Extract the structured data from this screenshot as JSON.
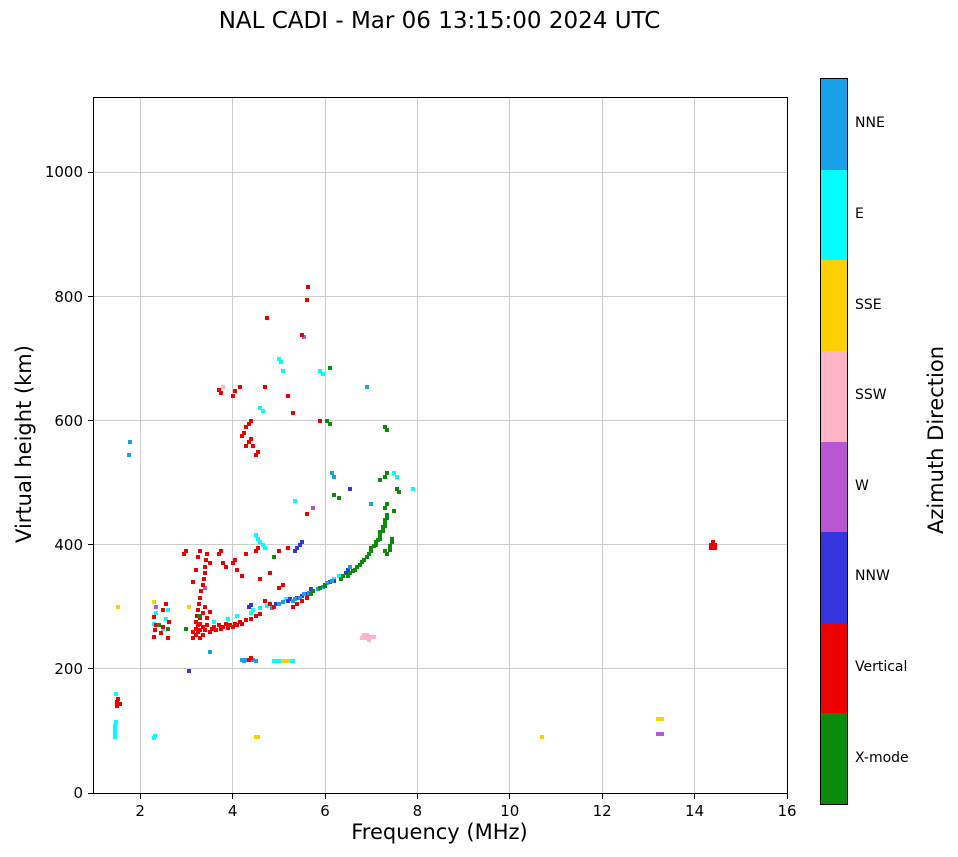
{
  "chart_data": {
    "type": "scatter",
    "title": "NAL CADI - Mar 06 13:15:00 2024 UTC",
    "xlabel": "Frequency (MHz)",
    "ylabel": "Virtual height (km)",
    "xlim": [
      1,
      16
    ],
    "ylim": [
      0,
      1120
    ],
    "xticks": [
      2,
      4,
      6,
      8,
      10,
      12,
      14,
      16
    ],
    "yticks": [
      0,
      200,
      400,
      600,
      800,
      1000
    ],
    "grid": true,
    "marker": "square",
    "legend_position": "right-colorbar",
    "colorbar": {
      "label": "Azimuth Direction",
      "categories": [
        {
          "label": "NNE",
          "color": "#18A0E8"
        },
        {
          "label": "E",
          "color": "#00FFFF"
        },
        {
          "label": "SSE",
          "color": "#FFD000"
        },
        {
          "label": "SSW",
          "color": "#FFB3C6"
        },
        {
          "label": "W",
          "color": "#BA55D3"
        },
        {
          "label": "NNW",
          "color": "#3535DD"
        },
        {
          "label": "Vertical",
          "color": "#EE0000"
        },
        {
          "label": "X-mode",
          "color": "#0B8A0B"
        }
      ]
    },
    "series": [
      {
        "name": "E",
        "color": "#00FFFF",
        "points": [
          [
            1.45,
            90
          ],
          [
            1.45,
            96
          ],
          [
            1.45,
            102
          ],
          [
            1.46,
            108
          ],
          [
            1.47,
            114
          ],
          [
            1.48,
            160
          ],
          [
            2.3,
            88
          ],
          [
            2.33,
            92
          ],
          [
            2.3,
            272
          ],
          [
            2.35,
            290
          ],
          [
            2.5,
            265
          ],
          [
            2.55,
            280
          ],
          [
            2.6,
            295
          ],
          [
            3.6,
            275
          ],
          [
            3.9,
            280
          ],
          [
            4.1,
            285
          ],
          [
            4.4,
            290
          ],
          [
            4.45,
            295
          ],
          [
            4.6,
            298
          ],
          [
            4.75,
            302
          ],
          [
            4.9,
            212
          ],
          [
            4.95,
            212
          ],
          [
            5.0,
            212
          ],
          [
            5.05,
            212
          ],
          [
            5.25,
            212
          ],
          [
            5.3,
            212
          ],
          [
            5.15,
            312
          ],
          [
            5.7,
            325
          ],
          [
            6.2,
            345
          ],
          [
            6.3,
            350
          ],
          [
            4.5,
            415
          ],
          [
            4.55,
            410
          ],
          [
            4.6,
            405
          ],
          [
            4.65,
            400
          ],
          [
            4.7,
            395
          ],
          [
            5.35,
            470
          ],
          [
            4.6,
            620
          ],
          [
            4.65,
            615
          ],
          [
            5.0,
            700
          ],
          [
            5.05,
            695
          ],
          [
            5.1,
            680
          ],
          [
            5.9,
            680
          ],
          [
            5.95,
            675
          ],
          [
            7.5,
            515
          ],
          [
            7.55,
            510
          ],
          [
            7.9,
            490
          ]
        ]
      },
      {
        "name": "SSE",
        "color": "#FFD000",
        "points": [
          [
            1.52,
            300
          ],
          [
            2.3,
            308
          ],
          [
            3.05,
            300
          ],
          [
            4.5,
            90
          ],
          [
            4.55,
            90
          ],
          [
            5.1,
            213
          ],
          [
            5.15,
            213
          ],
          [
            5.2,
            213
          ],
          [
            10.7,
            90
          ],
          [
            13.2,
            120
          ],
          [
            13.25,
            120
          ],
          [
            13.3,
            120
          ]
        ]
      },
      {
        "name": "SSW",
        "color": "#FFB3C6",
        "points": [
          [
            6.8,
            250
          ],
          [
            6.85,
            250
          ],
          [
            6.9,
            250
          ],
          [
            6.95,
            250
          ],
          [
            7.0,
            252
          ],
          [
            7.05,
            252
          ],
          [
            6.85,
            255
          ],
          [
            6.9,
            255
          ],
          [
            6.95,
            247
          ],
          [
            3.8,
            655
          ]
        ]
      },
      {
        "name": "W",
        "color": "#BA55D3",
        "points": [
          [
            2.35,
            300
          ],
          [
            3.4,
            330
          ],
          [
            5.55,
            735
          ],
          [
            5.75,
            460
          ],
          [
            13.2,
            95
          ],
          [
            13.25,
            95
          ],
          [
            13.3,
            95
          ]
        ]
      },
      {
        "name": "NNW",
        "color": "#3535DD",
        "points": [
          [
            3.05,
            197
          ],
          [
            4.35,
            300
          ],
          [
            4.4,
            303
          ],
          [
            4.95,
            305
          ],
          [
            5.2,
            310
          ],
          [
            5.25,
            312
          ],
          [
            5.4,
            315
          ],
          [
            5.5,
            318
          ],
          [
            5.6,
            320
          ],
          [
            5.7,
            328
          ],
          [
            6.0,
            335
          ],
          [
            6.1,
            340
          ],
          [
            6.2,
            342
          ],
          [
            6.45,
            355
          ],
          [
            6.5,
            360
          ],
          [
            5.35,
            390
          ],
          [
            5.4,
            395
          ],
          [
            5.45,
            400
          ],
          [
            5.5,
            405
          ],
          [
            6.55,
            490
          ]
        ]
      },
      {
        "name": "NNE",
        "color": "#18A0E8",
        "points": [
          [
            1.75,
            545
          ],
          [
            1.78,
            565
          ],
          [
            3.5,
            228
          ],
          [
            4.2,
            215
          ],
          [
            4.25,
            215
          ],
          [
            4.3,
            215
          ],
          [
            4.45,
            215
          ],
          [
            4.5,
            213
          ],
          [
            4.25,
            212
          ],
          [
            4.85,
            298
          ],
          [
            5.0,
            305
          ],
          [
            5.1,
            308
          ],
          [
            5.3,
            310
          ],
          [
            5.35,
            312
          ],
          [
            5.45,
            315
          ],
          [
            5.55,
            320
          ],
          [
            5.65,
            322
          ],
          [
            5.85,
            328
          ],
          [
            5.95,
            332
          ],
          [
            6.05,
            338
          ],
          [
            6.15,
            342
          ],
          [
            6.15,
            515
          ],
          [
            6.2,
            510
          ],
          [
            6.9,
            655
          ],
          [
            7.0,
            465
          ],
          [
            6.55,
            365
          ]
        ]
      },
      {
        "name": "Vertical",
        "color": "#EE0000",
        "points": [
          [
            1.5,
            140
          ],
          [
            1.5,
            147
          ],
          [
            1.53,
            152
          ],
          [
            1.56,
            143
          ],
          [
            2.3,
            252
          ],
          [
            2.32,
            262
          ],
          [
            2.35,
            270
          ],
          [
            2.3,
            283
          ],
          [
            2.45,
            258
          ],
          [
            2.5,
            268
          ],
          [
            2.5,
            295
          ],
          [
            2.55,
            305
          ],
          [
            2.6,
            250
          ],
          [
            2.62,
            275
          ],
          [
            2.95,
            385
          ],
          [
            3.0,
            390
          ],
          [
            3.15,
            250
          ],
          [
            3.15,
            260
          ],
          [
            3.15,
            340
          ],
          [
            3.2,
            255
          ],
          [
            3.2,
            265
          ],
          [
            3.2,
            275
          ],
          [
            3.2,
            360
          ],
          [
            3.22,
            285
          ],
          [
            3.25,
            260
          ],
          [
            3.25,
            270
          ],
          [
            3.25,
            295
          ],
          [
            3.25,
            380
          ],
          [
            3.28,
            305
          ],
          [
            3.3,
            250
          ],
          [
            3.3,
            262
          ],
          [
            3.3,
            272
          ],
          [
            3.3,
            282
          ],
          [
            3.3,
            315
          ],
          [
            3.3,
            390
          ],
          [
            3.32,
            325
          ],
          [
            3.35,
            255
          ],
          [
            3.35,
            268
          ],
          [
            3.35,
            290
          ],
          [
            3.35,
            335
          ],
          [
            3.38,
            345
          ],
          [
            3.4,
            262
          ],
          [
            3.4,
            300
          ],
          [
            3.4,
            355
          ],
          [
            3.4,
            365
          ],
          [
            3.42,
            375
          ],
          [
            3.45,
            270
          ],
          [
            3.45,
            282
          ],
          [
            3.45,
            385
          ],
          [
            3.5,
            260
          ],
          [
            3.5,
            292
          ],
          [
            3.5,
            370
          ],
          [
            3.55,
            265
          ],
          [
            3.6,
            268
          ],
          [
            3.65,
            262
          ],
          [
            3.7,
            270
          ],
          [
            3.75,
            265
          ],
          [
            3.8,
            268
          ],
          [
            3.85,
            272
          ],
          [
            3.9,
            266
          ],
          [
            3.95,
            270
          ],
          [
            4.0,
            268
          ],
          [
            4.05,
            272
          ],
          [
            4.1,
            270
          ],
          [
            4.15,
            275
          ],
          [
            4.2,
            272
          ],
          [
            4.3,
            278
          ],
          [
            4.4,
            280
          ],
          [
            4.5,
            285
          ],
          [
            4.6,
            288
          ],
          [
            4.35,
            215
          ],
          [
            4.4,
            218
          ],
          [
            3.7,
            385
          ],
          [
            3.75,
            390
          ],
          [
            3.8,
            370
          ],
          [
            3.85,
            365
          ],
          [
            4.0,
            370
          ],
          [
            4.05,
            375
          ],
          [
            4.1,
            360
          ],
          [
            4.2,
            350
          ],
          [
            4.3,
            385
          ],
          [
            4.5,
            390
          ],
          [
            4.55,
            395
          ],
          [
            4.6,
            345
          ],
          [
            4.8,
            355
          ],
          [
            5.0,
            390
          ],
          [
            5.2,
            395
          ],
          [
            4.7,
            310
          ],
          [
            4.8,
            305
          ],
          [
            4.9,
            300
          ],
          [
            5.3,
            300
          ],
          [
            5.4,
            305
          ],
          [
            5.5,
            310
          ],
          [
            5.6,
            315
          ],
          [
            5.0,
            330
          ],
          [
            5.1,
            335
          ],
          [
            5.6,
            450
          ],
          [
            3.7,
            650
          ],
          [
            3.75,
            645
          ],
          [
            4.0,
            640
          ],
          [
            4.05,
            648
          ],
          [
            4.15,
            655
          ],
          [
            4.2,
            575
          ],
          [
            4.25,
            580
          ],
          [
            4.3,
            560
          ],
          [
            4.3,
            590
          ],
          [
            4.35,
            565
          ],
          [
            4.35,
            595
          ],
          [
            4.4,
            570
          ],
          [
            4.4,
            600
          ],
          [
            4.45,
            560
          ],
          [
            4.5,
            545
          ],
          [
            4.55,
            550
          ],
          [
            4.7,
            655
          ],
          [
            4.75,
            765
          ],
          [
            5.2,
            640
          ],
          [
            5.3,
            612
          ],
          [
            5.5,
            738
          ],
          [
            5.6,
            795
          ],
          [
            5.63,
            815
          ],
          [
            5.9,
            600
          ],
          [
            14.35,
            395
          ],
          [
            14.4,
            395
          ],
          [
            14.45,
            395
          ],
          [
            14.35,
            400
          ],
          [
            14.4,
            400
          ],
          [
            14.45,
            400
          ],
          [
            14.4,
            404
          ]
        ]
      },
      {
        "name": "X-mode",
        "color": "#0B8A0B",
        "points": [
          [
            2.4,
            270
          ],
          [
            2.6,
            265
          ],
          [
            3.0,
            265
          ],
          [
            3.3,
            285
          ],
          [
            4.9,
            380
          ],
          [
            5.7,
            320
          ],
          [
            5.75,
            325
          ],
          [
            5.9,
            330
          ],
          [
            6.0,
            333
          ],
          [
            6.35,
            345
          ],
          [
            6.4,
            350
          ],
          [
            6.5,
            350
          ],
          [
            6.55,
            355
          ],
          [
            6.6,
            358
          ],
          [
            6.65,
            360
          ],
          [
            6.7,
            365
          ],
          [
            6.75,
            368
          ],
          [
            6.8,
            372
          ],
          [
            6.85,
            375
          ],
          [
            6.9,
            380
          ],
          [
            6.95,
            385
          ],
          [
            7.0,
            390
          ],
          [
            7.0,
            395
          ],
          [
            7.05,
            398
          ],
          [
            7.1,
            400
          ],
          [
            7.1,
            405
          ],
          [
            7.15,
            408
          ],
          [
            7.2,
            410
          ],
          [
            7.2,
            415
          ],
          [
            7.2,
            420
          ],
          [
            7.25,
            422
          ],
          [
            7.25,
            428
          ],
          [
            7.3,
            430
          ],
          [
            7.3,
            435
          ],
          [
            7.3,
            440
          ],
          [
            7.35,
            443
          ],
          [
            7.35,
            448
          ],
          [
            7.35,
            385
          ],
          [
            7.3,
            390
          ],
          [
            7.4,
            392
          ],
          [
            7.4,
            398
          ],
          [
            7.45,
            404
          ],
          [
            7.45,
            410
          ],
          [
            7.3,
            460
          ],
          [
            7.35,
            465
          ],
          [
            7.2,
            505
          ],
          [
            7.3,
            510
          ],
          [
            7.35,
            515
          ],
          [
            7.5,
            455
          ],
          [
            7.55,
            490
          ],
          [
            7.6,
            485
          ],
          [
            7.3,
            590
          ],
          [
            7.35,
            585
          ],
          [
            6.05,
            600
          ],
          [
            6.1,
            595
          ],
          [
            6.1,
            685
          ],
          [
            6.2,
            480
          ],
          [
            6.3,
            475
          ]
        ]
      }
    ]
  }
}
